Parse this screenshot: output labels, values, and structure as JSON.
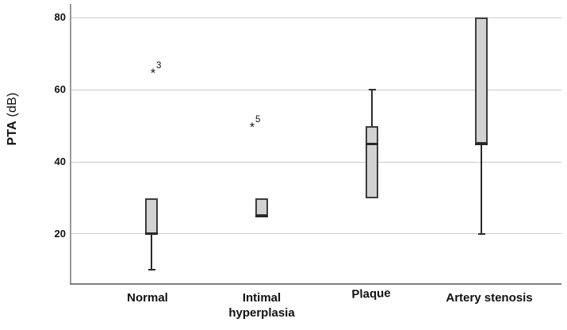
{
  "figure": {
    "y_axis_title_bold": "PTA",
    "y_axis_title_unit": " (dB)"
  },
  "chart_data": {
    "type": "boxplot",
    "title": "",
    "xlabel": "",
    "ylabel": "PTA (dB)",
    "categories": [
      "Normal",
      "Intimal hyperplasia",
      "Plaque",
      "Artery stenosis"
    ],
    "yticks": [
      20,
      40,
      60,
      80
    ],
    "ylim": [
      6,
      84
    ],
    "grid": "horizontal-light",
    "legend": "none",
    "boxes": [
      {
        "category": "Normal",
        "whisker_low": 10,
        "q1": 20,
        "median": 20,
        "q3": 30,
        "whisker_high": 30,
        "outliers": [
          {
            "value": 65,
            "label": "3",
            "marker": "asterisk"
          }
        ]
      },
      {
        "category": "Intimal hyperplasia",
        "whisker_low": 25,
        "q1": 25,
        "median": 25,
        "q3": 30,
        "whisker_high": 30,
        "outliers": [
          {
            "value": 50,
            "label": "5",
            "marker": "asterisk"
          }
        ]
      },
      {
        "category": "Plaque",
        "whisker_low": 30,
        "q1": 30,
        "median": 45,
        "q3": 50,
        "whisker_high": 60,
        "outliers": []
      },
      {
        "category": "Artery stenosis",
        "whisker_low": 20,
        "q1": 45,
        "median": 45,
        "q3": 80,
        "whisker_high": 80,
        "outliers": []
      }
    ],
    "colors": {
      "box_fill": "#d2d2d2",
      "box_border": "#3d3d3d",
      "median": "#262626",
      "whisker": "#2b2b2b",
      "grid": "#cccccc",
      "axis_left": "#9a9a9a",
      "axis_bottom": "#7e7e7e",
      "text": "#111111"
    }
  }
}
